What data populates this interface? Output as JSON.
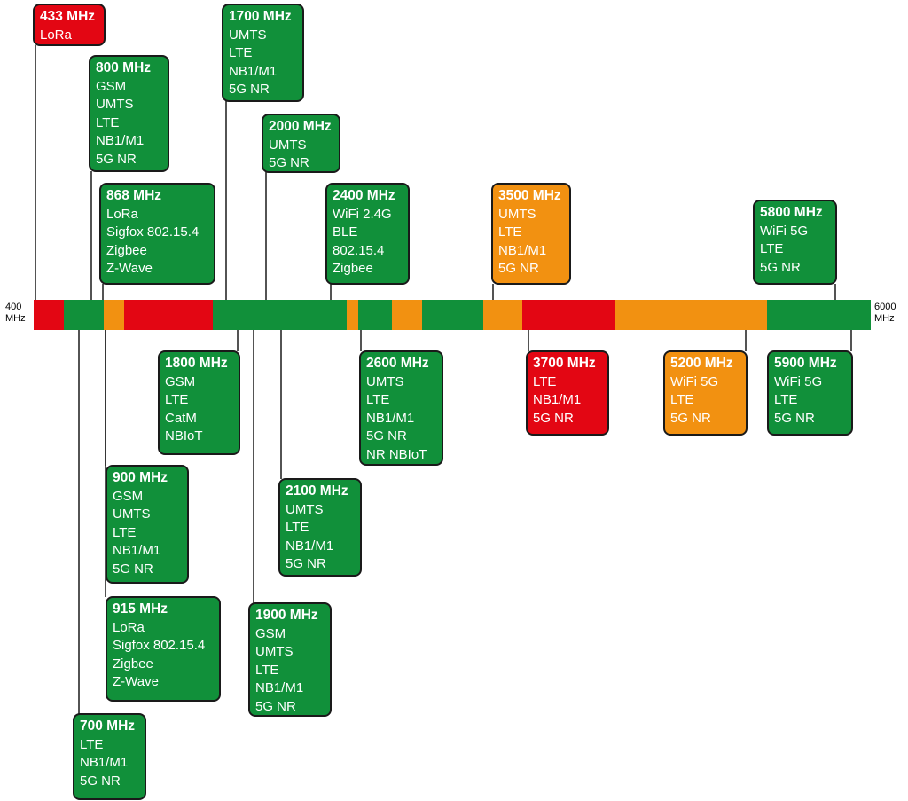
{
  "colors": {
    "green": "#11903a",
    "red": "#e30613",
    "orange": "#f29111"
  },
  "axis": {
    "start_label": [
      "400",
      "MHz"
    ],
    "end_label": [
      "6000",
      "MHz"
    ]
  },
  "bar_segments": [
    {
      "color": "red"
    },
    {
      "color": "green"
    },
    {
      "color": "orange"
    },
    {
      "color": "red"
    },
    {
      "color": "green"
    },
    {
      "color": "orange"
    },
    {
      "color": "green"
    },
    {
      "color": "orange"
    },
    {
      "color": "green"
    },
    {
      "color": "orange"
    },
    {
      "color": "red"
    },
    {
      "color": "orange"
    },
    {
      "color": "green"
    }
  ],
  "bands": [
    {
      "freq": "433 MHz",
      "color": "red",
      "techs": [
        "LoRa"
      ]
    },
    {
      "freq": "800 MHz",
      "color": "green",
      "techs": [
        "GSM",
        "UMTS",
        "LTE",
        "NB1/M1",
        "5G NR"
      ]
    },
    {
      "freq": "868 MHz",
      "color": "green",
      "techs": [
        "LoRa",
        "Sigfox 802.15.4",
        "Zigbee",
        "Z-Wave"
      ]
    },
    {
      "freq": "1700 MHz",
      "color": "green",
      "techs": [
        "UMTS",
        "LTE",
        "NB1/M1",
        "5G NR"
      ]
    },
    {
      "freq": "2000 MHz",
      "color": "green",
      "techs": [
        "UMTS",
        "5G NR"
      ]
    },
    {
      "freq": "2400 MHz",
      "color": "green",
      "techs": [
        "WiFi 2.4G",
        "BLE",
        "802.15.4",
        "Zigbee"
      ]
    },
    {
      "freq": "3500 MHz",
      "color": "orange",
      "techs": [
        "UMTS",
        "LTE",
        "NB1/M1",
        "5G NR"
      ]
    },
    {
      "freq": "5800 MHz",
      "color": "green",
      "techs": [
        "WiFi 5G",
        "LTE",
        "5G NR"
      ]
    },
    {
      "freq": "1800 MHz",
      "color": "green",
      "techs": [
        "GSM",
        "LTE",
        "CatM",
        "NBIoT"
      ]
    },
    {
      "freq": "2600 MHz",
      "color": "green",
      "techs": [
        "UMTS",
        "LTE",
        "NB1/M1",
        "5G NR",
        "NR NBIoT"
      ]
    },
    {
      "freq": "3700 MHz",
      "color": "red",
      "techs": [
        "LTE",
        "NB1/M1",
        "5G NR"
      ]
    },
    {
      "freq": "5200 MHz",
      "color": "orange",
      "techs": [
        "WiFi 5G",
        "LTE",
        "5G NR"
      ]
    },
    {
      "freq": "5900 MHz",
      "color": "green",
      "techs": [
        "WiFi 5G",
        "LTE",
        "5G NR"
      ]
    },
    {
      "freq": "900 MHz",
      "color": "green",
      "techs": [
        "GSM",
        "UMTS",
        "LTE",
        "NB1/M1",
        "5G NR"
      ]
    },
    {
      "freq": "2100 MHz",
      "color": "green",
      "techs": [
        "UMTS",
        "LTE",
        "NB1/M1",
        "5G NR"
      ]
    },
    {
      "freq": "915 MHz",
      "color": "green",
      "techs": [
        "LoRa",
        "Sigfox 802.15.4",
        "Zigbee",
        "Z-Wave"
      ]
    },
    {
      "freq": "1900 MHz",
      "color": "green",
      "techs": [
        "GSM",
        "UMTS",
        "LTE",
        "NB1/M1",
        "5G NR"
      ]
    },
    {
      "freq": "700 MHz",
      "color": "green",
      "techs": [
        "LTE",
        "NB1/M1",
        "5G NR"
      ]
    }
  ]
}
